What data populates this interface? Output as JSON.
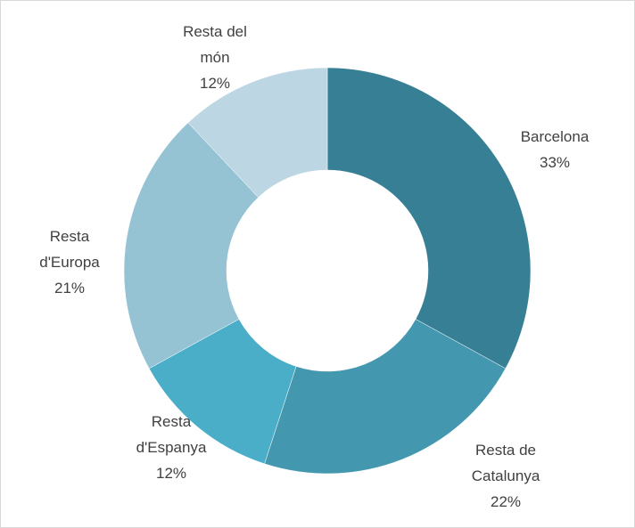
{
  "chart_data": {
    "type": "donut",
    "categories": [
      "Barcelona",
      "Resta de Catalunya",
      "Resta d'Espanya",
      "Resta d'Europa",
      "Resta del món"
    ],
    "values": [
      33,
      22,
      12,
      21,
      12
    ],
    "value_labels": [
      "33%",
      "22%",
      "12%",
      "21%",
      "12%"
    ],
    "colors": [
      "#367f95",
      "#4398b0",
      "#4aaec8",
      "#95c3d4",
      "#bcd7e3"
    ]
  }
}
